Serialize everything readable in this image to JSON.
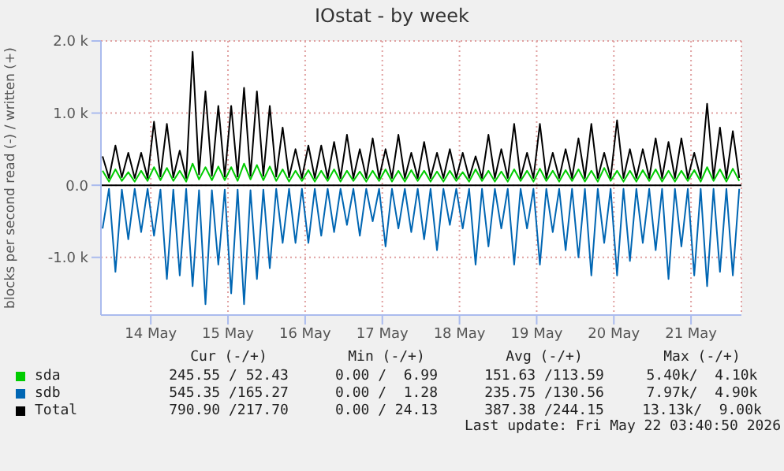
{
  "chart_data": {
    "type": "line",
    "title": "IOstat - by week",
    "ylabel": "blocks per second read (-) / written (+)",
    "x": [
      "2026-05-13T21:00",
      "2026-05-13T23:00",
      "2026-05-14T01:00",
      "2026-05-14T03:00",
      "2026-05-14T05:00",
      "2026-05-14T07:00",
      "2026-05-14T09:00",
      "2026-05-14T11:00",
      "2026-05-14T13:00",
      "2026-05-14T15:00",
      "2026-05-14T17:00",
      "2026-05-14T19:00",
      "2026-05-14T21:00",
      "2026-05-14T23:00",
      "2026-05-15T01:00",
      "2026-05-15T03:00",
      "2026-05-15T05:00",
      "2026-05-15T07:00",
      "2026-05-15T09:00",
      "2026-05-15T11:00",
      "2026-05-15T13:00",
      "2026-05-15T15:00",
      "2026-05-15T17:00",
      "2026-05-15T19:00",
      "2026-05-15T21:00",
      "2026-05-15T23:00",
      "2026-05-16T01:00",
      "2026-05-16T03:00",
      "2026-05-16T05:00",
      "2026-05-16T07:00",
      "2026-05-16T09:00",
      "2026-05-16T11:00",
      "2026-05-16T13:00",
      "2026-05-16T15:00",
      "2026-05-16T17:00",
      "2026-05-16T19:00",
      "2026-05-16T21:00",
      "2026-05-16T23:00",
      "2026-05-17T01:00",
      "2026-05-17T03:00",
      "2026-05-17T05:00",
      "2026-05-17T07:00",
      "2026-05-17T09:00",
      "2026-05-17T11:00",
      "2026-05-17T13:00",
      "2026-05-17T15:00",
      "2026-05-17T17:00",
      "2026-05-17T19:00",
      "2026-05-17T21:00",
      "2026-05-17T23:00",
      "2026-05-18T01:00",
      "2026-05-18T03:00",
      "2026-05-18T05:00",
      "2026-05-18T07:00",
      "2026-05-18T09:00",
      "2026-05-18T11:00",
      "2026-05-18T13:00",
      "2026-05-18T15:00",
      "2026-05-18T17:00",
      "2026-05-18T19:00",
      "2026-05-18T21:00",
      "2026-05-18T23:00",
      "2026-05-19T01:00",
      "2026-05-19T03:00",
      "2026-05-19T05:00",
      "2026-05-19T07:00",
      "2026-05-19T09:00",
      "2026-05-19T11:00",
      "2026-05-19T13:00",
      "2026-05-19T15:00",
      "2026-05-19T17:00",
      "2026-05-19T19:00",
      "2026-05-19T21:00",
      "2026-05-19T23:00",
      "2026-05-20T01:00",
      "2026-05-20T03:00",
      "2026-05-20T05:00",
      "2026-05-20T07:00",
      "2026-05-20T09:00",
      "2026-05-20T11:00",
      "2026-05-20T13:00",
      "2026-05-20T15:00",
      "2026-05-20T17:00",
      "2026-05-20T19:00",
      "2026-05-20T21:00",
      "2026-05-20T23:00",
      "2026-05-21T01:00",
      "2026-05-21T03:00",
      "2026-05-21T05:00",
      "2026-05-21T07:00",
      "2026-05-21T09:00",
      "2026-05-21T11:00",
      "2026-05-21T13:00",
      "2026-05-21T15:00",
      "2026-05-21T17:00",
      "2026-05-21T19:00",
      "2026-05-21T21:00",
      "2026-05-21T23:00",
      "2026-05-22T01:00",
      "2026-05-22T03:00"
    ],
    "series": [
      {
        "name": "sda",
        "color": "#00cc00",
        "values": [
          200,
          50,
          220,
          60,
          180,
          50,
          200,
          60,
          250,
          70,
          240,
          60,
          200,
          50,
          300,
          80,
          250,
          70,
          260,
          70,
          250,
          60,
          300,
          80,
          280,
          70,
          260,
          60,
          220,
          50,
          200,
          60,
          210,
          50,
          200,
          60,
          220,
          50,
          200,
          60,
          190,
          50,
          200,
          60,
          220,
          50,
          200,
          50,
          210,
          60,
          200,
          50,
          190,
          50,
          200,
          60,
          180,
          50,
          220,
          60,
          200,
          50,
          190,
          50,
          220,
          60,
          200,
          50,
          230,
          60,
          200,
          50,
          210,
          60,
          220,
          50,
          200,
          50,
          240,
          60,
          200,
          50,
          200,
          50,
          210,
          60,
          220,
          50,
          200,
          50,
          200,
          60,
          210,
          50,
          250,
          60,
          220,
          50,
          230,
          60
        ]
      },
      {
        "name": "sdb",
        "color": "#0066b3",
        "values": [
          -600,
          -50,
          -1200,
          -60,
          -750,
          -50,
          -650,
          -50,
          -700,
          -60,
          -1300,
          -60,
          -1250,
          -50,
          -1400,
          -70,
          -1650,
          -70,
          -1100,
          -60,
          -1500,
          -60,
          -1650,
          -70,
          -1300,
          -60,
          -1150,
          -50,
          -800,
          -50,
          -800,
          -50,
          -800,
          -50,
          -700,
          -50,
          -650,
          -50,
          -550,
          -50,
          -700,
          -50,
          -500,
          -50,
          -850,
          -50,
          -600,
          -50,
          -650,
          -50,
          -750,
          -50,
          -900,
          -50,
          -550,
          -50,
          -600,
          -50,
          -1100,
          -50,
          -850,
          -50,
          -600,
          -50,
          -1100,
          -50,
          -600,
          -50,
          -1100,
          -50,
          -650,
          -50,
          -900,
          -50,
          -1000,
          -50,
          -1250,
          -50,
          -800,
          -50,
          -1250,
          -50,
          -1050,
          -50,
          -800,
          -50,
          -900,
          -50,
          -1300,
          -50,
          -850,
          -50,
          -1250,
          -50,
          -1400,
          -50,
          -1200,
          -50,
          -1250,
          -50
        ]
      },
      {
        "name": "Total",
        "color": "#000000",
        "values": [
          400,
          100,
          550,
          110,
          450,
          100,
          450,
          100,
          880,
          120,
          850,
          110,
          480,
          100,
          1850,
          150,
          1300,
          130,
          1100,
          120,
          1100,
          120,
          1350,
          130,
          1300,
          130,
          1100,
          120,
          800,
          110,
          500,
          100,
          550,
          100,
          550,
          100,
          600,
          100,
          700,
          100,
          500,
          100,
          650,
          100,
          500,
          100,
          700,
          100,
          450,
          100,
          600,
          100,
          450,
          100,
          500,
          100,
          450,
          100,
          400,
          100,
          700,
          100,
          500,
          100,
          850,
          100,
          450,
          100,
          850,
          100,
          450,
          100,
          500,
          100,
          650,
          100,
          850,
          100,
          450,
          100,
          900,
          100,
          500,
          100,
          500,
          100,
          650,
          100,
          600,
          100,
          650,
          100,
          450,
          100,
          1130,
          100,
          800,
          100,
          750,
          100
        ]
      }
    ],
    "xlim": [
      "2026-05-13T20:30",
      "2026-05-22T03:40"
    ],
    "xticks": [
      {
        "value": "2026-05-14T12:00",
        "label": "14 May"
      },
      {
        "value": "2026-05-15T12:00",
        "label": "15 May"
      },
      {
        "value": "2026-05-16T12:00",
        "label": "16 May"
      },
      {
        "value": "2026-05-17T12:00",
        "label": "17 May"
      },
      {
        "value": "2026-05-18T12:00",
        "label": "18 May"
      },
      {
        "value": "2026-05-19T12:00",
        "label": "19 May"
      },
      {
        "value": "2026-05-20T12:00",
        "label": "20 May"
      },
      {
        "value": "2026-05-21T12:00",
        "label": "21 May"
      }
    ],
    "ylim": [
      -1800,
      2000
    ],
    "yticks": [
      {
        "value": -1000,
        "label": "-1.0 k"
      },
      {
        "value": 0,
        "label": "0.0"
      },
      {
        "value": 1000,
        "label": "1.0 k"
      },
      {
        "value": 2000,
        "label": "2.0 k"
      }
    ],
    "ref_lines": [
      {
        "axis": "y",
        "value": 0,
        "color": "#000000"
      }
    ],
    "grid": true,
    "legend": "bottom",
    "marker": "none",
    "line_style": "solid",
    "annotations": [
      "Cur (-/+)",
      "Min (-/+)",
      "Avg (-/+)",
      "Max (-/+)",
      "245.55 / 52.43",
      "0.00 /  6.99",
      "151.63 /113.59",
      "5.40k/  4.10k",
      "545.35 /165.27",
      "0.00 /  1.28",
      "235.75 /130.56",
      "7.97k/  4.90k",
      "790.90 /217.70",
      "0.00 / 24.13",
      "387.38 /244.15",
      "13.13k/  9.00k",
      "Last update: Fri May 22 03:40:50 2026"
    ]
  }
}
